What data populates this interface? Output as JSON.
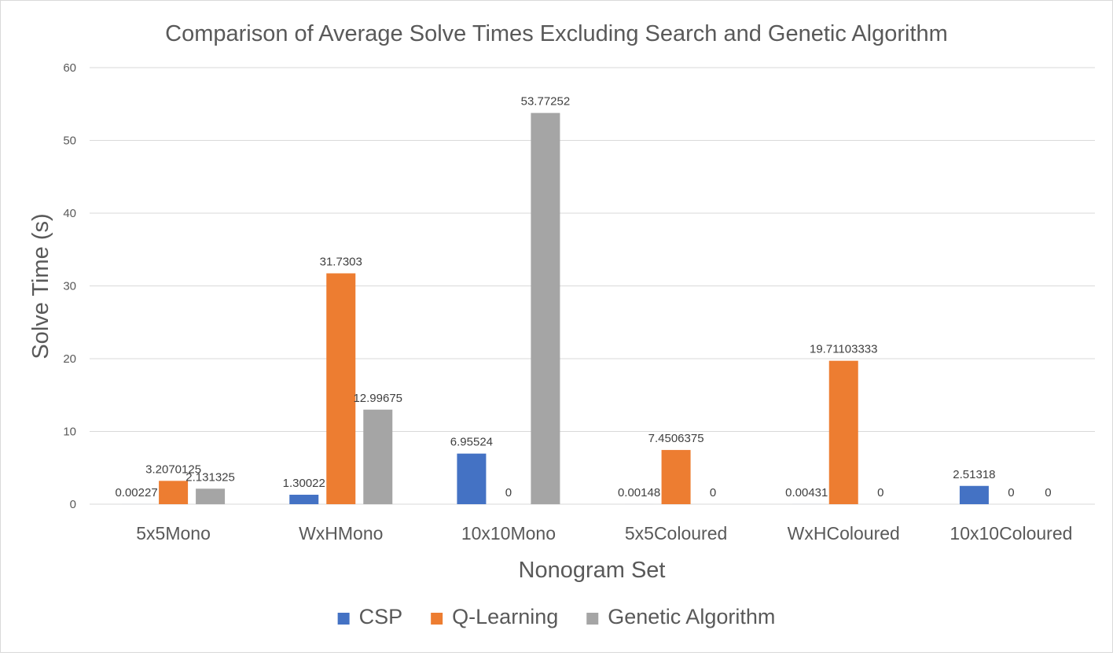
{
  "chart_data": {
    "type": "bar",
    "title": "Comparison of Average Solve Times Excluding Search and Genetic Algorithm",
    "xlabel": "Nonogram Set",
    "ylabel": "Solve Time (s)",
    "ylim": [
      0,
      60
    ],
    "yticks": [
      0,
      10,
      20,
      30,
      40,
      50,
      60
    ],
    "grid": true,
    "legend_position": "bottom",
    "categories": [
      "5x5Mono",
      "WxHMono",
      "10x10Mono",
      "5x5Coloured",
      "WxHColoured",
      "10x10Coloured"
    ],
    "series": [
      {
        "name": "CSP",
        "color": "#4472C4",
        "values": [
          0.00227,
          1.30022,
          6.95524,
          0.00148,
          0.00431,
          2.51318
        ],
        "labels": [
          "0.00227",
          "1.30022",
          "6.95524",
          "0.00148",
          "0.00431",
          "2.51318"
        ]
      },
      {
        "name": "Q-Learning",
        "color": "#ED7D31",
        "values": [
          3.2070125,
          31.7303,
          0,
          7.4506375,
          19.71103333,
          0
        ],
        "labels": [
          "3.2070125",
          "31.7303",
          "0",
          "7.4506375",
          "19.71103333",
          "0"
        ]
      },
      {
        "name": "Genetic Algorithm",
        "color": "#A5A5A5",
        "values": [
          2.131325,
          12.99675,
          53.77252,
          0,
          0,
          0
        ],
        "labels": [
          "2.131325",
          "12.99675",
          "53.77252",
          "0",
          "0",
          "0"
        ]
      }
    ]
  }
}
